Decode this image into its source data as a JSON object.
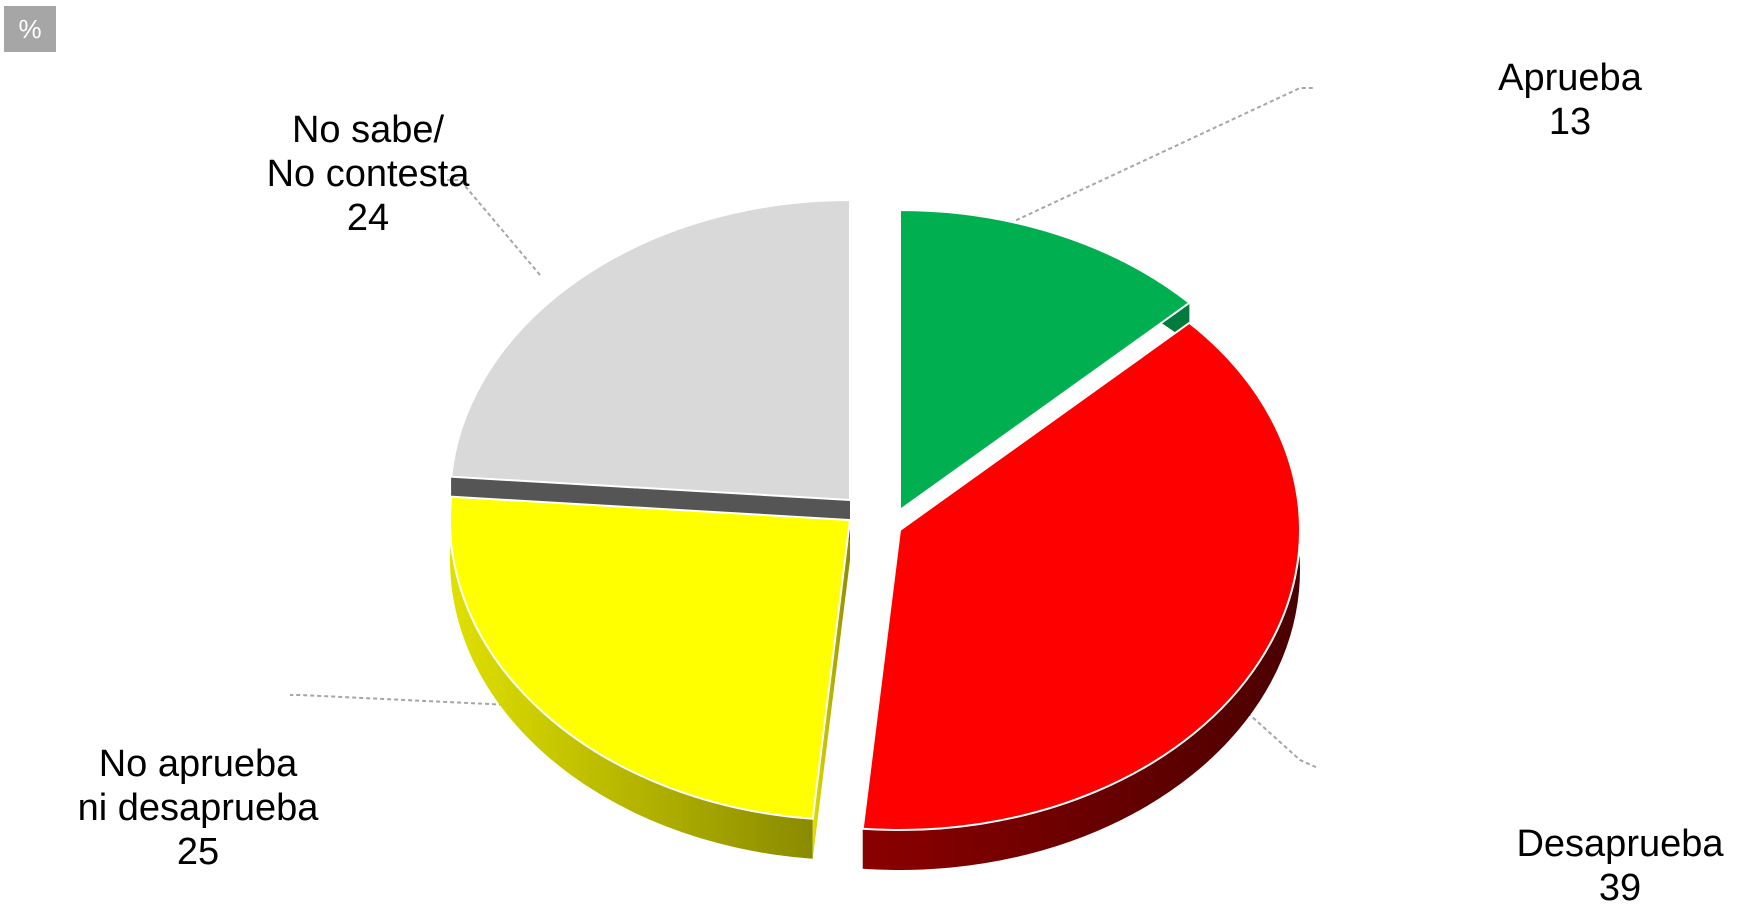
{
  "unit_badge": "%",
  "colors": {
    "aprueba": "#00b050",
    "desaprueba": "#ff0000",
    "ni": "#ffff00",
    "nsnc": "#d9d9d9",
    "leader": "#a6a6a6"
  },
  "chart_data": {
    "type": "pie",
    "title": "",
    "unit": "%",
    "slices": [
      {
        "label": "Aprueba",
        "value": 13,
        "color": "#00b050"
      },
      {
        "label": "Desaprueba",
        "value": 39,
        "color": "#ff0000"
      },
      {
        "label": "No aprueba ni desaprueba",
        "value": 25,
        "color": "#ffff00"
      },
      {
        "label": "No sabe/ No contesta",
        "value": 24,
        "color": "#d9d9d9"
      }
    ],
    "labels": {
      "aprueba": {
        "line1": "Aprueba",
        "value": "13"
      },
      "desaprueba": {
        "line1": "Desaprueba",
        "value": "39"
      },
      "ni": {
        "line1": "No aprueba",
        "line2": "ni desaprueba",
        "value": "25"
      },
      "nsnc": {
        "line1": "No sabe/",
        "line2": "No contesta",
        "value": "24"
      }
    }
  }
}
